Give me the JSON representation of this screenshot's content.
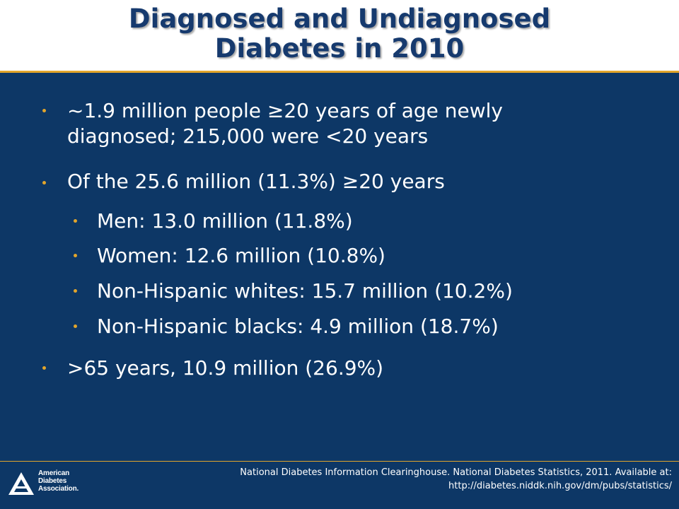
{
  "slide": {
    "title_line1": "Diagnosed and Undiagnosed",
    "title_line2": "Diabetes in 2010",
    "bullets": [
      {
        "line1": "~1.9 million people ≥20 years of age newly",
        "line2": "diagnosed; 215,000 were <20 years"
      },
      {
        "text": "Of the 25.6 million (11.3%) ≥20 years"
      },
      {
        "text": "Men: 13.0 million (11.8%)"
      },
      {
        "text": "Women: 12.6 million (10.8%)"
      },
      {
        "text": "Non-Hispanic whites: 15.7 million (10.2%)"
      },
      {
        "text": "Non-Hispanic blacks: 4.9 million (18.7%)"
      },
      {
        "text": ">65 years, 10.9 million (26.9%)"
      }
    ]
  },
  "footer": {
    "citation_line1": "National Diabetes Information Clearinghouse. National Diabetes Statistics, 2011. Available at:",
    "citation_line2": "http://diabetes.niddk.nih.gov/dm/pubs/statistics/",
    "logo": {
      "line1": "American",
      "line2": "Diabetes",
      "line3": "Association."
    }
  },
  "colors": {
    "background": "#0d3766",
    "accent": "#e2a52b",
    "title_text": "#163a6e"
  }
}
